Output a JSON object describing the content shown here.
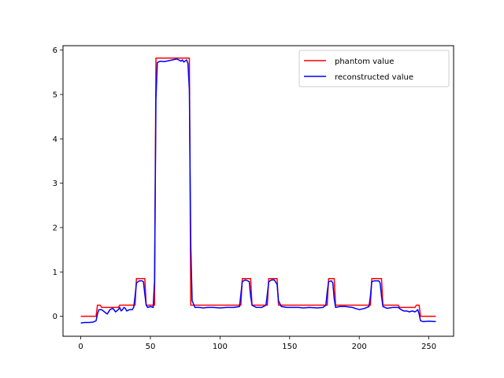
{
  "chart_data": {
    "type": "line",
    "title": "",
    "xlabel": "",
    "ylabel": "",
    "xlim": [
      -12.75,
      267.75
    ],
    "ylim": [
      -0.45,
      6.1
    ],
    "xticks": [
      0,
      50,
      100,
      150,
      200,
      250
    ],
    "yticks": [
      0,
      1,
      2,
      3,
      4,
      5,
      6
    ],
    "grid": false,
    "legend_position": "top-right",
    "series": [
      {
        "name": "phantom value",
        "color": "#ff0000",
        "points": [
          [
            0,
            0.0
          ],
          [
            11,
            0.0
          ],
          [
            12,
            0.25
          ],
          [
            14,
            0.25
          ],
          [
            15,
            0.2
          ],
          [
            27,
            0.2
          ],
          [
            28,
            0.25
          ],
          [
            39,
            0.25
          ],
          [
            40,
            0.85
          ],
          [
            46,
            0.85
          ],
          [
            47,
            0.25
          ],
          [
            53,
            0.25
          ],
          [
            54,
            5.82
          ],
          [
            78,
            5.82
          ],
          [
            79,
            0.25
          ],
          [
            115,
            0.25
          ],
          [
            116,
            0.85
          ],
          [
            122,
            0.85
          ],
          [
            123,
            0.25
          ],
          [
            134,
            0.25
          ],
          [
            135,
            0.85
          ],
          [
            141,
            0.85
          ],
          [
            142,
            0.25
          ],
          [
            177,
            0.25
          ],
          [
            178,
            0.85
          ],
          [
            182,
            0.85
          ],
          [
            183,
            0.25
          ],
          [
            208,
            0.25
          ],
          [
            209,
            0.85
          ],
          [
            216,
            0.85
          ],
          [
            217,
            0.25
          ],
          [
            228,
            0.25
          ],
          [
            229,
            0.2
          ],
          [
            240,
            0.2
          ],
          [
            241,
            0.25
          ],
          [
            243,
            0.25
          ],
          [
            244,
            0.0
          ],
          [
            255,
            0.0
          ]
        ]
      },
      {
        "name": "reconstructed value",
        "color": "#0000ff",
        "points": [
          [
            0,
            -0.15
          ],
          [
            3,
            -0.14
          ],
          [
            6,
            -0.14
          ],
          [
            9,
            -0.13
          ],
          [
            11,
            -0.1
          ],
          [
            12,
            0.05
          ],
          [
            13,
            0.15
          ],
          [
            15,
            0.15
          ],
          [
            17,
            0.1
          ],
          [
            19,
            0.05
          ],
          [
            21,
            0.15
          ],
          [
            23,
            0.18
          ],
          [
            25,
            0.1
          ],
          [
            27,
            0.15
          ],
          [
            28,
            0.2
          ],
          [
            29,
            0.12
          ],
          [
            30,
            0.15
          ],
          [
            31,
            0.2
          ],
          [
            32,
            0.18
          ],
          [
            33,
            0.12
          ],
          [
            35,
            0.15
          ],
          [
            37,
            0.15
          ],
          [
            38,
            0.2
          ],
          [
            39,
            0.45
          ],
          [
            40,
            0.75
          ],
          [
            42,
            0.8
          ],
          [
            44,
            0.8
          ],
          [
            45,
            0.78
          ],
          [
            46,
            0.5
          ],
          [
            47,
            0.25
          ],
          [
            48,
            0.2
          ],
          [
            50,
            0.22
          ],
          [
            52,
            0.2
          ],
          [
            53,
            0.8
          ],
          [
            54,
            4.9
          ],
          [
            55,
            5.72
          ],
          [
            57,
            5.75
          ],
          [
            60,
            5.74
          ],
          [
            63,
            5.76
          ],
          [
            66,
            5.78
          ],
          [
            69,
            5.8
          ],
          [
            72,
            5.75
          ],
          [
            73,
            5.78
          ],
          [
            74,
            5.73
          ],
          [
            76,
            5.78
          ],
          [
            77,
            5.7
          ],
          [
            78,
            5.1
          ],
          [
            79,
            1.6
          ],
          [
            80,
            0.35
          ],
          [
            82,
            0.2
          ],
          [
            85,
            0.2
          ],
          [
            88,
            0.19
          ],
          [
            91,
            0.2
          ],
          [
            95,
            0.2
          ],
          [
            100,
            0.19
          ],
          [
            105,
            0.2
          ],
          [
            110,
            0.2
          ],
          [
            114,
            0.22
          ],
          [
            115,
            0.5
          ],
          [
            116,
            0.78
          ],
          [
            118,
            0.82
          ],
          [
            120,
            0.8
          ],
          [
            121,
            0.78
          ],
          [
            122,
            0.45
          ],
          [
            123,
            0.25
          ],
          [
            126,
            0.2
          ],
          [
            130,
            0.2
          ],
          [
            133,
            0.25
          ],
          [
            134,
            0.5
          ],
          [
            135,
            0.78
          ],
          [
            137,
            0.82
          ],
          [
            139,
            0.82
          ],
          [
            141,
            0.72
          ],
          [
            142,
            0.35
          ],
          [
            144,
            0.22
          ],
          [
            148,
            0.2
          ],
          [
            152,
            0.2
          ],
          [
            156,
            0.2
          ],
          [
            160,
            0.19
          ],
          [
            164,
            0.2
          ],
          [
            170,
            0.19
          ],
          [
            174,
            0.2
          ],
          [
            176,
            0.25
          ],
          [
            177,
            0.55
          ],
          [
            178,
            0.78
          ],
          [
            180,
            0.8
          ],
          [
            181,
            0.75
          ],
          [
            182,
            0.4
          ],
          [
            183,
            0.2
          ],
          [
            186,
            0.22
          ],
          [
            190,
            0.22
          ],
          [
            195,
            0.2
          ],
          [
            200,
            0.15
          ],
          [
            204,
            0.18
          ],
          [
            207,
            0.22
          ],
          [
            208,
            0.45
          ],
          [
            209,
            0.78
          ],
          [
            211,
            0.8
          ],
          [
            214,
            0.8
          ],
          [
            215,
            0.75
          ],
          [
            216,
            0.45
          ],
          [
            217,
            0.22
          ],
          [
            220,
            0.18
          ],
          [
            224,
            0.2
          ],
          [
            228,
            0.2
          ],
          [
            230,
            0.15
          ],
          [
            232,
            0.12
          ],
          [
            234,
            0.12
          ],
          [
            236,
            0.1
          ],
          [
            238,
            0.12
          ],
          [
            240,
            0.1
          ],
          [
            241,
            0.12
          ],
          [
            242,
            0.15
          ],
          [
            243,
            0.05
          ],
          [
            244,
            -0.1
          ],
          [
            246,
            -0.12
          ],
          [
            250,
            -0.11
          ],
          [
            255,
            -0.12
          ]
        ]
      }
    ]
  }
}
